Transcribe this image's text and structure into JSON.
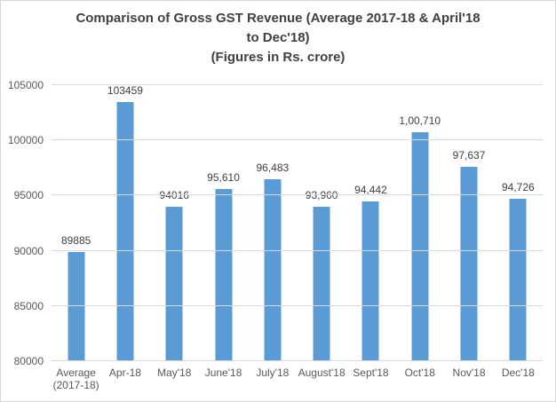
{
  "window": {
    "background": "#FFFFFF",
    "border_color": "#D6D6D6"
  },
  "chart_data": {
    "type": "bar",
    "title": "Comparison of Gross GST Revenue (Average 2017-18 & April'18 to Dec'18) (Figures in Rs. crore)",
    "title_lines": [
      "Comparison of Gross GST Revenue (Average 2017-18 & April'18",
      "to Dec'18)",
      "(Figures in Rs. crore)"
    ],
    "categories": [
      "Average (2017-18)",
      "Apr-18",
      "May'18",
      "June'18",
      "July'18",
      "August'18",
      "Sept'18",
      "Oct'18",
      "Nov'18",
      "Dec'18"
    ],
    "category_display": [
      "Average\n(2017-18)",
      "Apr-18",
      "May'18",
      "June'18",
      "July'18",
      "August'18",
      "Sept'18",
      "Oct'18",
      "Nov'18",
      "Dec'18"
    ],
    "values": [
      89885,
      103459,
      94016,
      95610,
      96483,
      93960,
      94442,
      100710,
      97637,
      94726
    ],
    "data_labels": [
      "89885",
      "103459",
      "94016",
      "95,610",
      "96,483",
      "93,960",
      "94,442",
      "1,00,710",
      "97,637",
      "94,726"
    ],
    "xlabel": "",
    "ylabel": "",
    "ylim": [
      80000,
      105000
    ],
    "yticks": [
      80000,
      85000,
      90000,
      95000,
      100000,
      105000
    ],
    "ytick_labels": [
      "80000",
      "85000",
      "90000",
      "95000",
      "100000",
      "105000"
    ],
    "grid": true,
    "legend_position": "none",
    "bar_color": "#5B9BD5",
    "gridline_color": "#D9D9D9",
    "title_color": "#404040",
    "tick_color": "#595959",
    "data_label_color": "#404040"
  }
}
